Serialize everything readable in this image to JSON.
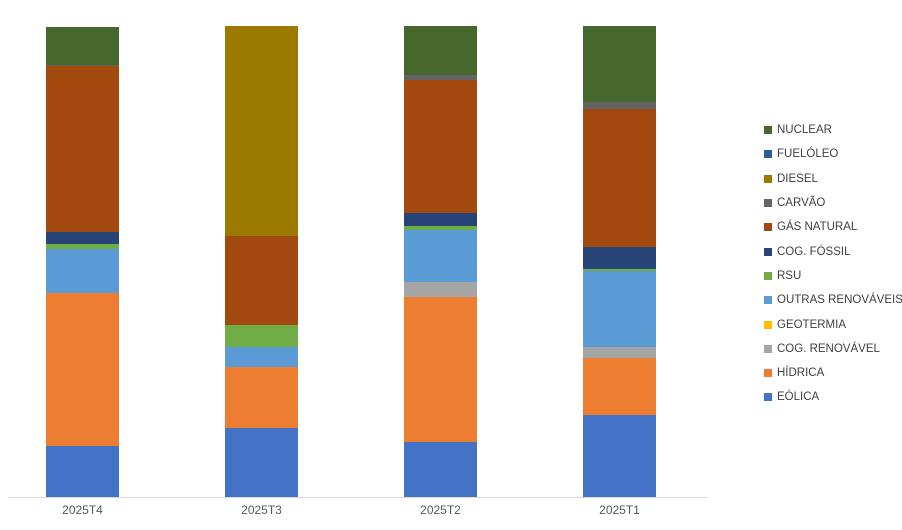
{
  "chart_data": {
    "type": "bar",
    "subtype": "stacked-100-percent",
    "title": "",
    "xlabel": "",
    "ylabel": "",
    "grid": false,
    "legend_position": "right",
    "axis_line_color": "#d9d9d9",
    "tick_label_color": "#595959",
    "legend_text_color": "#404040",
    "categories": [
      "2025T4",
      "2025T3",
      "2025T2",
      "2025T1"
    ],
    "unit": "percent",
    "ylim": [
      0,
      100
    ],
    "series": [
      {
        "name": "EÓLICA",
        "color": "#4472c4",
        "values": [
          10.8,
          14.6,
          11.7,
          17.4
        ]
      },
      {
        "name": "HÍDRICA",
        "color": "#ed7d31",
        "values": [
          32.5,
          13.0,
          30.8,
          12.1
        ]
      },
      {
        "name": "COG. RENOVÁVEL",
        "color": "#a5a5a5",
        "values": [
          0,
          0,
          3.2,
          2.3
        ]
      },
      {
        "name": "GEOTERMIA",
        "color": "#ffc000",
        "values": [
          0,
          0,
          0,
          0
        ]
      },
      {
        "name": "OUTRAS RENOVÁVEIS",
        "color": "#5b9bd5",
        "values": [
          9.3,
          4.2,
          11.0,
          16.1
        ]
      },
      {
        "name": "RSU",
        "color": "#70ad47",
        "values": [
          1.1,
          4.7,
          0.8,
          0.5
        ]
      },
      {
        "name": "COG. FÓSSIL",
        "color": "#264478",
        "values": [
          2.5,
          0,
          2.8,
          4.7
        ]
      },
      {
        "name": "GÁS NATURAL",
        "color": "#a1490e",
        "values": [
          35.3,
          18.9,
          28.2,
          29.3
        ]
      },
      {
        "name": "CARVÃO",
        "color": "#646464",
        "values": [
          0.3,
          0,
          1.1,
          1.5
        ]
      },
      {
        "name": "DIESEL",
        "color": "#9c7a00",
        "values": [
          0,
          44.6,
          0,
          0
        ]
      },
      {
        "name": "FUELÓLEO",
        "color": "#2e5e8e",
        "values": [
          0,
          0,
          0,
          0
        ]
      },
      {
        "name": "NUCLEAR",
        "color": "#47682c",
        "values": [
          8.1,
          0,
          10.4,
          16.1
        ]
      }
    ],
    "legend_order_top_to_bottom": [
      "NUCLEAR",
      "FUELÓLEO",
      "DIESEL",
      "CARVÃO",
      "GÁS NATURAL",
      "COG. FÓSSIL",
      "RSU",
      "OUTRAS RENOVÁVEIS",
      "GEOTERMIA",
      "COG. RENOVÁVEL",
      "HÍDRICA",
      "EÓLICA"
    ]
  }
}
